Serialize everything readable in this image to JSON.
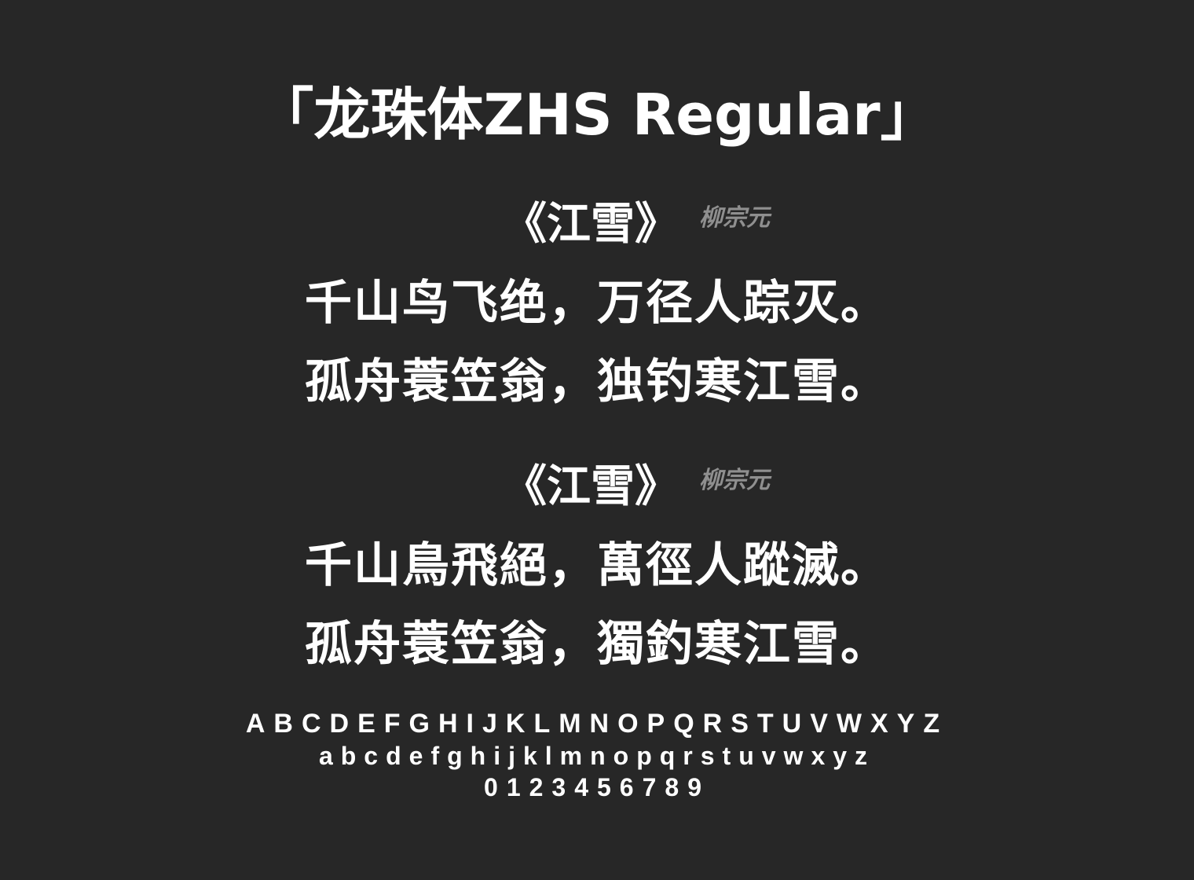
{
  "title": "「龙珠体ZHS Regular」",
  "poems": [
    {
      "title": "《江雪》",
      "author": "柳宗元",
      "lines": [
        "千山鸟飞绝，万径人踪灭。",
        "孤舟蓑笠翁，独钓寒江雪。"
      ]
    },
    {
      "title": "《江雪》",
      "author": "柳宗元",
      "lines": [
        "千山鳥飛絕，萬徑人蹤滅。",
        "孤舟蓑笠翁，獨釣寒江雪。"
      ]
    }
  ],
  "specimen": {
    "uppercase": "ABCDEFGHIJKLMNOPQRSTUVWXYZ",
    "lowercase": "abcdefghijklmnopqrstuvwxyz",
    "digits": "0123456789"
  },
  "colors": {
    "background": "#272727",
    "text": "#ffffff",
    "author": "#8f8f8f"
  }
}
